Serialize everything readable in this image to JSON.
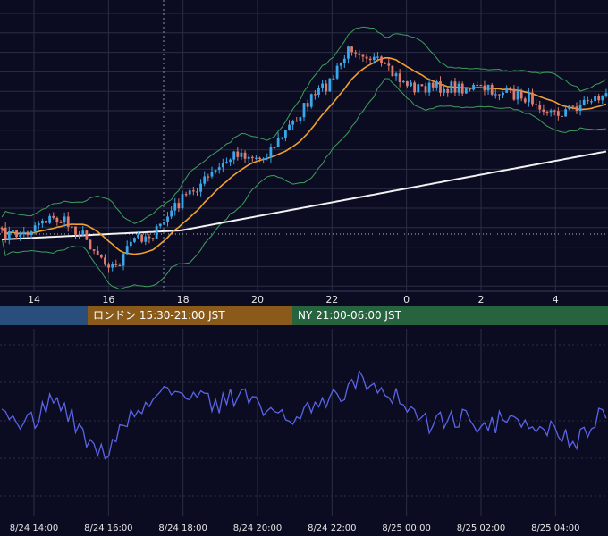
{
  "colors": {
    "background": "#0b0c22",
    "grid": "#2a2e45",
    "candle_up": "#3aa7e8",
    "candle_down": "#e07a6a",
    "ma_short": "#f0a030",
    "ma_long": "#f2f2f2",
    "band": "#3f9e5c",
    "oscillator": "#5a64e6",
    "session_tokyo": "#2a4e7c",
    "session_london": "#8a5a1a",
    "session_ny": "#26633e",
    "axis_text": "#e6e6e6"
  },
  "sessions": [
    {
      "label": "",
      "color": "#2a4e7c"
    },
    {
      "label": "ロンドン 15:30-21:00 JST",
      "color": "#8a5a1a"
    },
    {
      "label": "NY 21:00-06:00 JST",
      "color": "#26633e"
    }
  ],
  "chart_data": [
    {
      "type": "candlestick",
      "x_tick_labels": [
        "14",
        "16",
        "18",
        "20",
        "22",
        "0",
        "2",
        "4"
      ],
      "grid": true,
      "series": [
        {
          "name": "",
          "style": "moving-average",
          "color": "#f0a030"
        },
        {
          "name": "",
          "style": "moving-average",
          "color": "#f2f2f2"
        },
        {
          "name": "",
          "style": "band",
          "color": "#3f9e5c"
        }
      ]
    },
    {
      "type": "line",
      "x_tick_labels": [
        "8/24 14:00",
        "8/24 16:00",
        "8/24 18:00",
        "8/24 20:00",
        "8/24 22:00",
        "8/25 00:00",
        "8/25 02:00",
        "8/25 04:00"
      ],
      "grid": true,
      "series": [
        {
          "name": "",
          "color": "#5a64e6"
        }
      ]
    }
  ]
}
